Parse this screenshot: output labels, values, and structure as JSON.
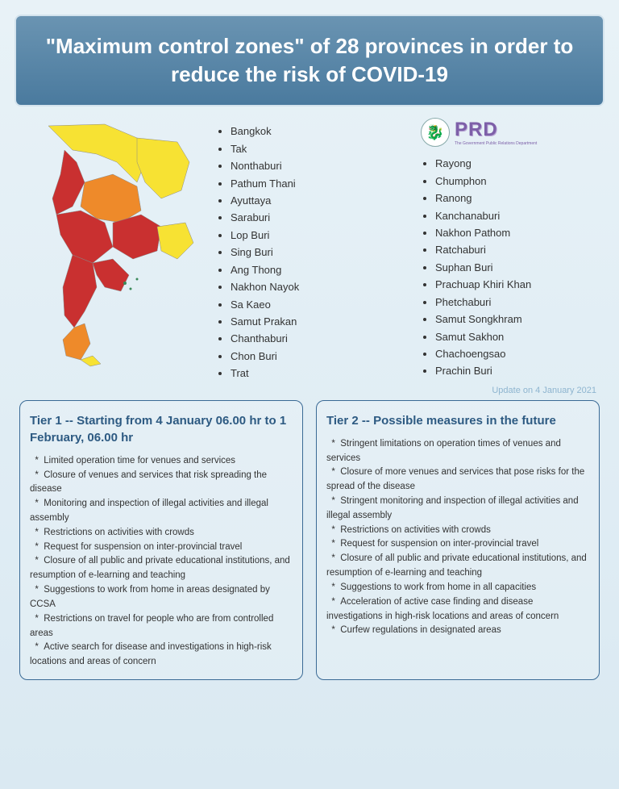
{
  "header": {
    "title": "\"Maximum control zones\" of 28 provinces in order to reduce the risk of COVID-19",
    "band_gradient_top": "#6a94b2",
    "band_gradient_bottom": "#4a7a9e",
    "text_color": "#ffffff",
    "border_color": "#d4e3ed"
  },
  "page_bg_top": "#e8f2f7",
  "page_bg_bottom": "#dae9f2",
  "map": {
    "colors": {
      "red": "#c93030",
      "orange": "#ee8a2a",
      "yellow": "#f7e233",
      "sea": "#cfe6ef",
      "outline": "#888"
    }
  },
  "provinces_col1": [
    "Bangkok",
    "Tak",
    "Nonthaburi",
    "Pathum Thani",
    "Ayuttaya",
    "Saraburi",
    "Lop Buri",
    "Sing Buri",
    "Ang Thong",
    "Nakhon Nayok",
    "Sa Kaeo",
    "Samut Prakan",
    "Chanthaburi",
    "Chon Buri",
    "Trat"
  ],
  "provinces_col2": [
    "Rayong",
    "Chumphon",
    "Ranong",
    "Kanchanaburi",
    "Nakhon Pathom",
    "Ratchaburi",
    "Suphan Buri",
    "Prachuap Khiri Khan",
    "Phetchaburi",
    "Samut Songkhram",
    "Samut Sakhon",
    "Chachoengsao",
    "Prachin Buri"
  ],
  "logo": {
    "text": "PRD",
    "sub": "The Government Public Relations Department",
    "color": "#7d5fa8"
  },
  "update_text": "Update on 4 January 2021",
  "tier1": {
    "title": "Tier 1 -- Starting from 4 January 06.00 hr to 1 February, 06.00 hr",
    "items": [
      "Limited operation time for venues and services",
      "Closure of venues and services that risk spreading the disease",
      "Monitoring and inspection of illegal activities and illegal assembly",
      "Restrictions on activities with crowds",
      "Request for suspension on inter-provincial travel",
      "Closure of all public and private educational institutions, and resumption of e-learning and teaching",
      "Suggestions to work from home in areas designated by CCSA",
      "Restrictions on travel for people who are from controlled areas",
      "Active search for disease and investigations in high-risk locations and areas of concern"
    ]
  },
  "tier2": {
    "title": "Tier 2 -- Possible measures in the future",
    "items": [
      "Stringent limitations on operation times of venues and services",
      "Closure of more venues and services that pose risks for the spread of the disease",
      "Stringent monitoring and inspection of illegal activities and illegal assembly",
      "Restrictions on activities with crowds",
      "Request for suspension on inter-provincial travel",
      "Closure of all public and private educational institutions, and resumption of e-learning and teaching",
      "Suggestions to work from home in all capacities",
      "Acceleration of active case finding and disease investigations in high-risk locations and areas of concern",
      "Curfew regulations in designated areas"
    ]
  },
  "tier_box": {
    "border_color": "#3a6a95",
    "title_color": "#2d5a82",
    "body_color": "#333333"
  }
}
